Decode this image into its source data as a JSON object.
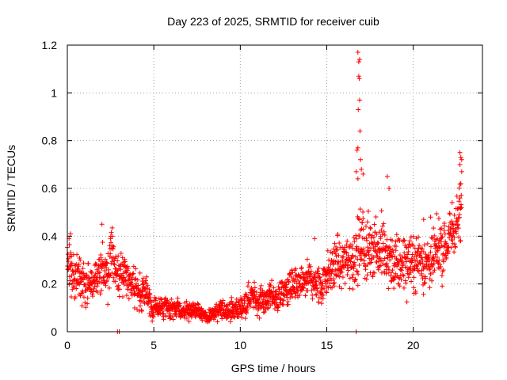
{
  "chart_data": {
    "type": "scatter",
    "title": "Day 223 of 2025, SRMTID for receiver cuib",
    "xlabel": "GPS time / hours",
    "ylabel": "SRMTID / TECUs",
    "xlim": [
      0,
      24
    ],
    "ylim": [
      0,
      1.2
    ],
    "xticks": [
      0,
      5,
      10,
      15,
      20
    ],
    "xtick_labels": [
      "0",
      "5",
      "10",
      "15",
      "20"
    ],
    "yticks": [
      0,
      0.2,
      0.4,
      0.6,
      0.8,
      1.0,
      1.2
    ],
    "ytick_labels": [
      "0",
      "0.2",
      "0.4",
      "0.6",
      "0.8",
      "1",
      "1.2"
    ],
    "grid": true,
    "marker": "+",
    "color": "#ff0000",
    "trend": [
      {
        "x": 0.0,
        "y": 0.26,
        "spread": 0.09
      },
      {
        "x": 0.5,
        "y": 0.21,
        "spread": 0.08
      },
      {
        "x": 1.0,
        "y": 0.2,
        "spread": 0.07
      },
      {
        "x": 1.5,
        "y": 0.2,
        "spread": 0.07
      },
      {
        "x": 2.0,
        "y": 0.25,
        "spread": 0.09
      },
      {
        "x": 2.5,
        "y": 0.28,
        "spread": 0.09
      },
      {
        "x": 3.0,
        "y": 0.27,
        "spread": 0.08
      },
      {
        "x": 3.5,
        "y": 0.22,
        "spread": 0.07
      },
      {
        "x": 4.0,
        "y": 0.2,
        "spread": 0.07
      },
      {
        "x": 4.5,
        "y": 0.15,
        "spread": 0.06
      },
      {
        "x": 5.0,
        "y": 0.1,
        "spread": 0.04
      },
      {
        "x": 6.0,
        "y": 0.09,
        "spread": 0.035
      },
      {
        "x": 7.0,
        "y": 0.085,
        "spread": 0.03
      },
      {
        "x": 8.0,
        "y": 0.075,
        "spread": 0.03
      },
      {
        "x": 9.0,
        "y": 0.085,
        "spread": 0.035
      },
      {
        "x": 10.0,
        "y": 0.1,
        "spread": 0.04
      },
      {
        "x": 11.0,
        "y": 0.13,
        "spread": 0.05
      },
      {
        "x": 12.0,
        "y": 0.15,
        "spread": 0.05
      },
      {
        "x": 13.0,
        "y": 0.17,
        "spread": 0.06
      },
      {
        "x": 14.0,
        "y": 0.2,
        "spread": 0.07
      },
      {
        "x": 15.0,
        "y": 0.25,
        "spread": 0.08
      },
      {
        "x": 16.0,
        "y": 0.28,
        "spread": 0.09
      },
      {
        "x": 17.0,
        "y": 0.38,
        "spread": 0.12
      },
      {
        "x": 18.0,
        "y": 0.35,
        "spread": 0.11
      },
      {
        "x": 19.0,
        "y": 0.3,
        "spread": 0.1
      },
      {
        "x": 20.0,
        "y": 0.3,
        "spread": 0.1
      },
      {
        "x": 21.0,
        "y": 0.3,
        "spread": 0.1
      },
      {
        "x": 22.0,
        "y": 0.4,
        "spread": 0.1
      },
      {
        "x": 22.8,
        "y": 0.45,
        "spread": 0.11
      }
    ],
    "notable_points": [
      {
        "x": 16.8,
        "y": 1.17
      },
      {
        "x": 16.85,
        "y": 1.13
      },
      {
        "x": 16.9,
        "y": 1.14
      },
      {
        "x": 16.85,
        "y": 1.07
      },
      {
        "x": 16.88,
        "y": 1.06
      },
      {
        "x": 16.9,
        "y": 0.97
      },
      {
        "x": 16.82,
        "y": 0.93
      },
      {
        "x": 16.92,
        "y": 0.84
      },
      {
        "x": 16.8,
        "y": 0.77
      },
      {
        "x": 16.75,
        "y": 0.76
      },
      {
        "x": 16.95,
        "y": 0.72
      },
      {
        "x": 17.0,
        "y": 0.68
      },
      {
        "x": 16.7,
        "y": 0.67
      },
      {
        "x": 17.1,
        "y": 0.66
      },
      {
        "x": 16.8,
        "y": 0.64
      },
      {
        "x": 22.7,
        "y": 0.75
      },
      {
        "x": 22.75,
        "y": 0.73
      },
      {
        "x": 22.8,
        "y": 0.72
      },
      {
        "x": 22.7,
        "y": 0.7
      },
      {
        "x": 22.8,
        "y": 0.67
      },
      {
        "x": 22.75,
        "y": 0.62
      },
      {
        "x": 22.7,
        "y": 0.56
      },
      {
        "x": 2.0,
        "y": 0.45
      },
      {
        "x": 2.6,
        "y": 0.4
      },
      {
        "x": 2.5,
        "y": 0.39
      },
      {
        "x": 0.1,
        "y": 0.39
      },
      {
        "x": 14.3,
        "y": 0.39
      },
      {
        "x": 18.5,
        "y": 0.65
      },
      {
        "x": 18.6,
        "y": 0.6
      },
      {
        "x": 21.0,
        "y": 0.48
      },
      {
        "x": 20.6,
        "y": 0.47
      },
      {
        "x": 2.9,
        "y": 0.0
      },
      {
        "x": 3.0,
        "y": 0.0
      },
      {
        "x": 16.7,
        "y": 0.0
      }
    ]
  }
}
